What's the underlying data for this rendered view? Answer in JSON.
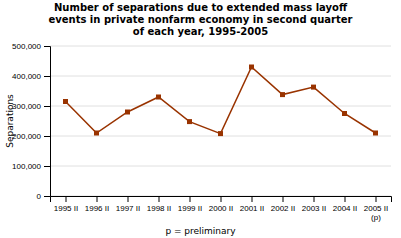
{
  "chart_data": {
    "type": "line",
    "title": "Number of separations due to extended mass layoff\nevents in private nonfarm economy in second quarter\nof each year, 1995-2005",
    "ylabel": "Separations",
    "footnote": "p = preliminary",
    "categories": [
      "1995 II",
      "1996 II",
      "1997 II",
      "1998 II",
      "1999 II",
      "2000 II",
      "2001 II",
      "2002 II",
      "2003 II",
      "2004 II",
      "2005 II\n(p)"
    ],
    "values": [
      315000,
      210000,
      280000,
      330000,
      248000,
      208000,
      430000,
      338000,
      363000,
      275000,
      210000
    ],
    "color": "#993300",
    "marker": "square",
    "ylim": [
      0,
      500000
    ],
    "yticks": [
      0,
      {
        "value": 100000,
        "label": "100,000"
      },
      {
        "value": 200000,
        "label": "200,000"
      },
      {
        "value": 300000,
        "label": "300,000"
      },
      {
        "value": 400000,
        "label": "400,000"
      },
      {
        "value": 500000,
        "label": "500,000"
      }
    ],
    "grid": true
  }
}
